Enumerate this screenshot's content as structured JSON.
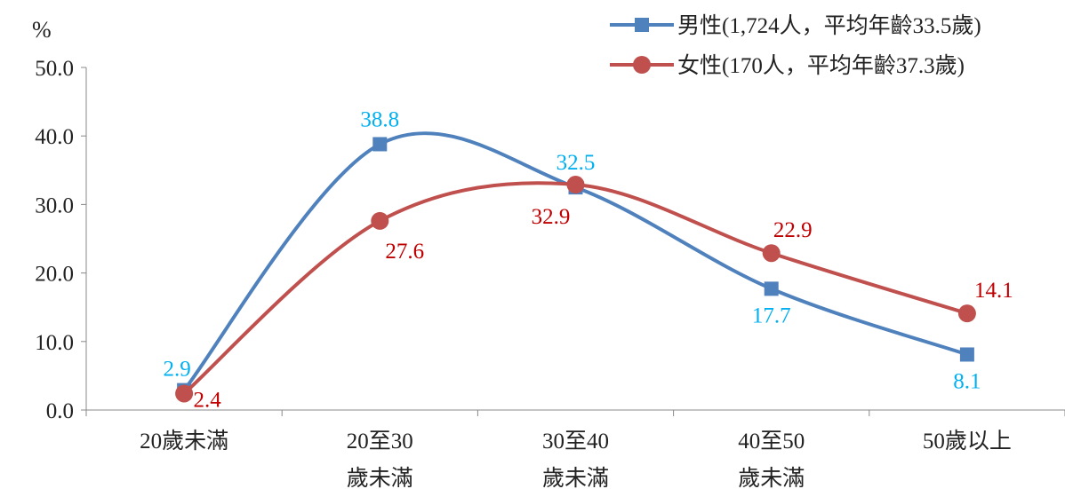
{
  "chart_data": {
    "type": "line",
    "ylabel": "%",
    "ylim": [
      0,
      50
    ],
    "yticks": [
      "0.0",
      "10.0",
      "20.0",
      "30.0",
      "40.0",
      "50.0"
    ],
    "categories": [
      [
        "20歲未滿"
      ],
      [
        "20至30",
        "歲未滿"
      ],
      [
        "30至40",
        "歲未滿"
      ],
      [
        "40至50",
        "歲未滿"
      ],
      [
        "50歲以上"
      ]
    ],
    "grid": false,
    "smooth": true,
    "legend_position": "top-right",
    "series": [
      {
        "name": "男性(1,724人，平均年齡33.5歲)",
        "marker": "square",
        "color": "#4f81bd",
        "label_color": "#00b0f0",
        "values": [
          2.9,
          38.8,
          32.5,
          17.7,
          8.1
        ],
        "labels": [
          "2.9",
          "38.8",
          "32.5",
          "17.7",
          "8.1"
        ]
      },
      {
        "name": "女性(170人，平均年齡37.3歲)",
        "marker": "circle",
        "color": "#c0504d",
        "label_color": "#c00000",
        "values": [
          2.4,
          27.6,
          32.9,
          22.9,
          14.1
        ],
        "labels": [
          "2.4",
          "27.6",
          "32.9",
          "22.9",
          "14.1"
        ]
      }
    ]
  }
}
